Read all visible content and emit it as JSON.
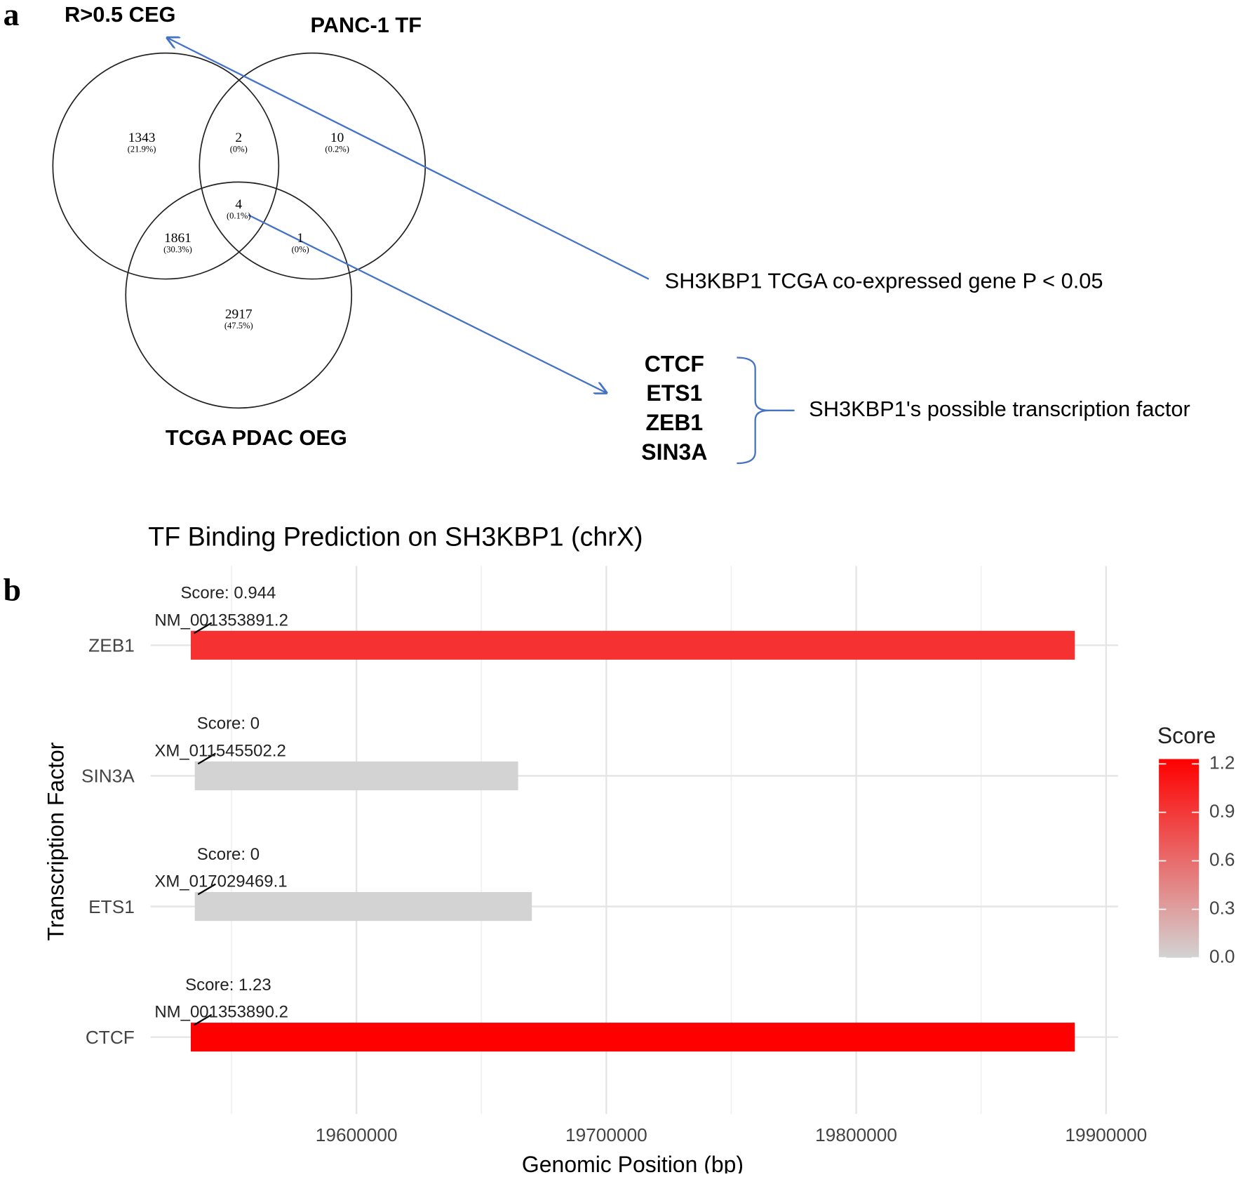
{
  "panel_labels": [
    "a",
    "b"
  ],
  "chart_data": [
    {
      "type": "venn",
      "sets": [
        "R>0.5  CEG",
        "PANC-1 TF",
        "TCGA PDAC OEG"
      ],
      "regions": {
        "values": [
          1343,
          2,
          10,
          4,
          1861,
          1,
          2917
        ],
        "percent_labels": [
          "(21.9%)",
          "(0%)",
          "(0.2%)",
          "(0.1%)",
          "(30.3%)",
          "(0%)",
          "(47.5%)"
        ]
      },
      "annotations": {
        "coexpressed_note": "SH3KBP1 TCGA co-expressed gene P < 0.05",
        "tf_list": [
          "CTCF",
          "ETS1",
          "ZEB1",
          "SIN3A"
        ],
        "tf_note": "SH3KBP1's possible transcription factor"
      }
    },
    {
      "type": "range-bar",
      "title": "TF Binding Prediction on SH3KBP1 (chrX)",
      "xlabel": "Genomic Position (bp)",
      "ylabel": "Transcription Factor",
      "categories": [
        "CTCF",
        "ETS1",
        "SIN3A",
        "ZEB1"
      ],
      "starts": [
        19533700,
        19535300,
        19535300,
        19533700
      ],
      "ends": [
        19887500,
        19670200,
        19664700,
        19887500
      ],
      "scores": [
        1.23,
        0,
        0,
        0.944
      ],
      "value_labels": [
        "Score: 1.23",
        "Score: 0",
        "Score: 0",
        "Score: 0.944"
      ],
      "transcripts": [
        "NM_001353890.2",
        "XM_017029469.1",
        "XM_011545502.2",
        "NM_001353891.2"
      ],
      "xlim": [
        19517600,
        19904800
      ],
      "xticks": [
        19600000,
        19700000,
        19800000,
        19900000
      ],
      "minor_xticks": [
        19550000,
        19650000,
        19750000,
        19850000
      ],
      "grid": true,
      "color_scale": {
        "title": "Score",
        "low": "#d3d3d3",
        "high": "#ff0000",
        "limits": [
          0,
          1.23
        ],
        "ticks": [
          {
            "value": 0,
            "label": "0.0"
          },
          0.3,
          0.6,
          0.9,
          1.2
        ]
      }
    }
  ]
}
